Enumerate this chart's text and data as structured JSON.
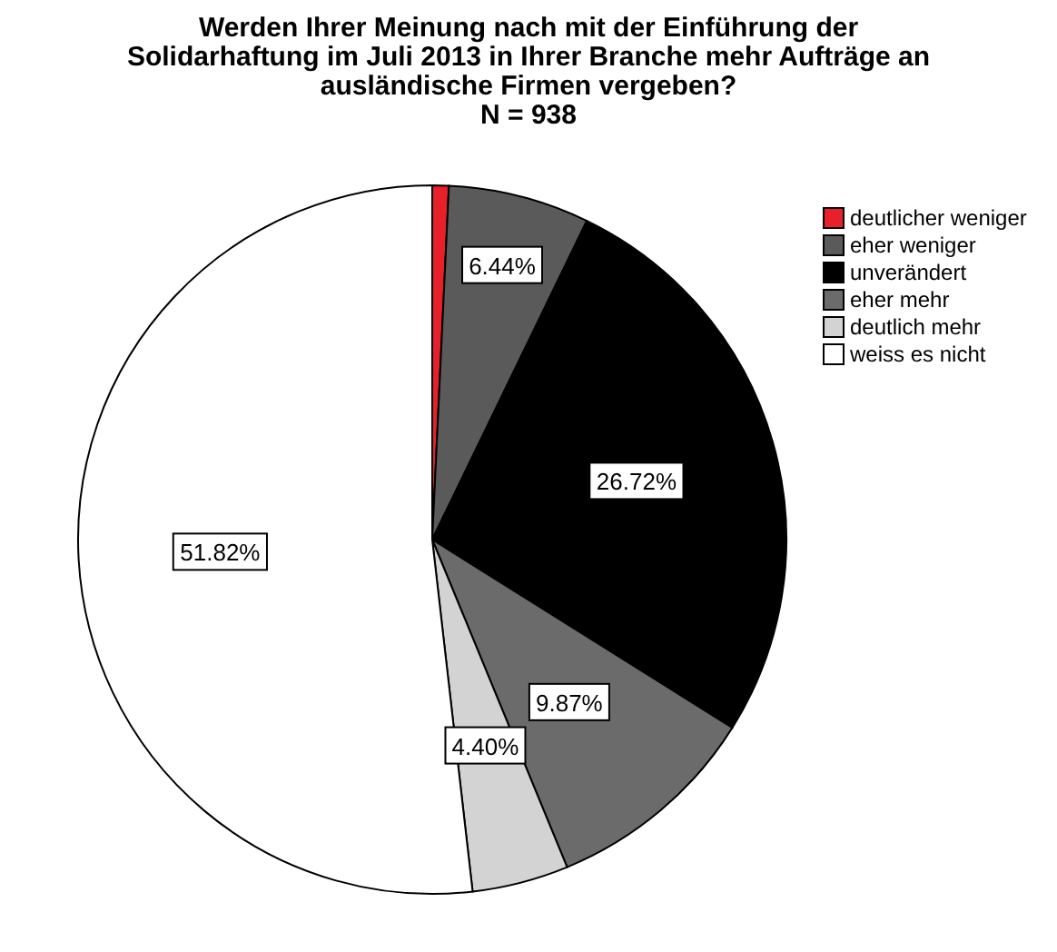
{
  "chart_data": {
    "type": "pie",
    "title": "Werden Ihrer Meinung nach mit der Einführung der Solidarhaftung im Juli 2013 in Ihrer Branche mehr Aufträge an ausländische Firmen vergeben?",
    "subtitle": "N = 938",
    "categories": [
      "deutlicher weniger",
      "eher weniger",
      "unverändert",
      "eher mehr",
      "deutlich mehr",
      "weiss es nicht"
    ],
    "values": [
      0.75,
      6.44,
      26.72,
      9.87,
      4.4,
      51.82
    ],
    "colors": [
      "#e8202a",
      "#5a5a5a",
      "#000000",
      "#6b6b6b",
      "#d3d3d3",
      "#ffffff"
    ],
    "value_labels": [
      null,
      "6.44%",
      "26.72%",
      "9.87%",
      "4.40%",
      "51.82%"
    ],
    "legend": "right"
  }
}
